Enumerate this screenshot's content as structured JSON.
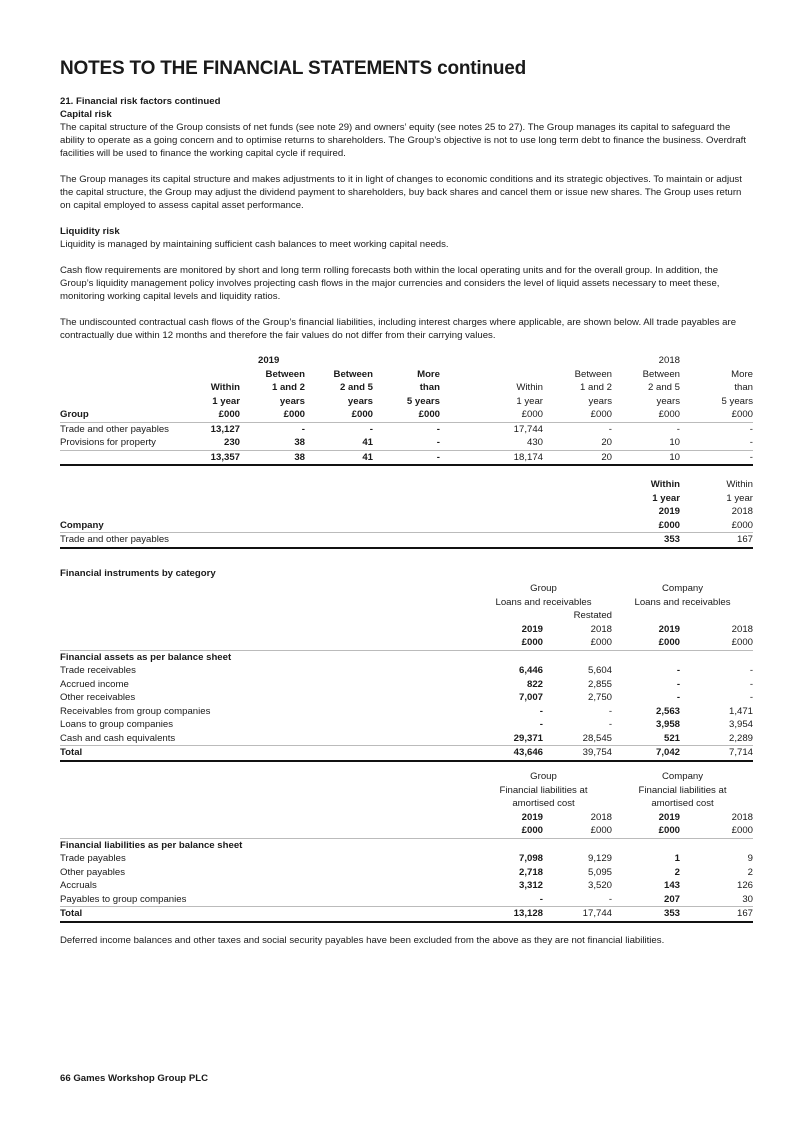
{
  "title": "NOTES TO THE FINANCIAL STATEMENTS continued",
  "section": "21.  Financial risk factors continued",
  "capital_risk": {
    "heading": "Capital risk",
    "p1": "The capital structure of the Group consists of net funds (see note 29) and owners’ equity (see notes 25 to 27). The Group manages its capital to safeguard the ability to operate as a going concern and to optimise returns to shareholders. The Group’s objective is not to use long term debt to finance the business. Overdraft facilities will be used to finance the working capital cycle if required.",
    "p2": "The Group manages its capital structure and makes adjustments to it in light of changes to economic conditions and its strategic objectives. To maintain or adjust the capital structure, the Group may adjust the dividend payment to shareholders, buy back shares and cancel them or issue new shares. The Group uses return on capital employed to assess capital asset performance."
  },
  "liquidity_risk": {
    "heading": "Liquidity risk",
    "p1": "Liquidity is managed by maintaining sufficient cash balances to meet working capital needs.",
    "p2": "Cash flow requirements are monitored by short and long term rolling forecasts both within the local operating units and for the overall group. In addition, the Group’s liquidity management policy involves projecting cash flows in the major currencies and considers the level of liquid assets necessary to meet these, monitoring working capital levels and liquidity ratios.",
    "p3": "The undiscounted contractual cash flows of the Group’s financial liabilities, including interest charges where applicable, are shown below. All trade payables are contractually due within 12 months and therefore the fair values do not differ from their carrying values."
  },
  "group_table": {
    "year_2019": "2019",
    "year_2018": "2018",
    "headers": [
      [
        "",
        "",
        "Between",
        "Between",
        "More",
        "",
        "Between",
        "Between",
        "More"
      ],
      [
        "",
        "Within",
        "1 and 2",
        "2 and 5",
        "than",
        "Within",
        "1 and 2",
        "2 and 5",
        "than"
      ],
      [
        "",
        "1 year",
        "years",
        "years",
        "5 years",
        "1 year",
        "years",
        "years",
        "5 years"
      ],
      [
        "Group",
        "£000",
        "£000",
        "£000",
        "£000",
        "£000",
        "£000",
        "£000",
        "£000"
      ]
    ],
    "rows": [
      [
        "Trade and other payables",
        "13,127",
        "-",
        "-",
        "-",
        "17,744",
        "-",
        "-",
        "-"
      ],
      [
        "Provisions for property",
        "230",
        "38",
        "41",
        "-",
        "430",
        "20",
        "10",
        "-"
      ]
    ],
    "total": [
      "",
      "13,357",
      "38",
      "41",
      "-",
      "18,174",
      "20",
      "10",
      "-"
    ]
  },
  "company_table": {
    "headers": [
      [
        "",
        "Within",
        "Within"
      ],
      [
        "",
        "1 year",
        "1 year"
      ],
      [
        "",
        "2019",
        "2018"
      ],
      [
        "Company",
        "£000",
        "£000"
      ]
    ],
    "row": [
      "Trade and other payables",
      "353",
      "167"
    ]
  },
  "fin_instruments": {
    "heading": "Financial instruments by category",
    "assets": {
      "group_label": "Group",
      "group_sub": "Loans and receivables",
      "company_label": "Company",
      "company_sub": "Loans and receivables",
      "restated": "Restated",
      "years": [
        "2019",
        "2018",
        "2019",
        "2018"
      ],
      "units": [
        "£000",
        "£000",
        "£000",
        "£000"
      ],
      "section_heading": "Financial assets as per balance sheet",
      "rows": [
        [
          "Trade receivables",
          "6,446",
          "5,604",
          "-",
          "-"
        ],
        [
          "Accrued income",
          "822",
          "2,855",
          "-",
          "-"
        ],
        [
          "Other receivables",
          "7,007",
          "2,750",
          "-",
          "-"
        ],
        [
          "Receivables from group companies",
          "-",
          "-",
          "2,563",
          "1,471"
        ],
        [
          "Loans to group companies",
          "-",
          "-",
          "3,958",
          "3,954"
        ],
        [
          "Cash and cash equivalents",
          "29,371",
          "28,545",
          "521",
          "2,289"
        ]
      ],
      "total": [
        "Total",
        "43,646",
        "39,754",
        "7,042",
        "7,714"
      ]
    },
    "liabilities": {
      "group_label": "Group",
      "group_sub1": "Financial liabilities at",
      "group_sub2": "amortised cost",
      "company_label": "Company",
      "company_sub1": "Financial liabilities at",
      "company_sub2": "amortised cost",
      "years": [
        "2019",
        "2018",
        "2019",
        "2018"
      ],
      "units": [
        "£000",
        "£000",
        "£000",
        "£000"
      ],
      "section_heading": "Financial liabilities as per balance sheet",
      "rows": [
        [
          "Trade payables",
          "7,098",
          "9,129",
          "1",
          "9"
        ],
        [
          "Other payables",
          "2,718",
          "5,095",
          "2",
          "2"
        ],
        [
          "Accruals",
          "3,312",
          "3,520",
          "143",
          "126"
        ],
        [
          "Payables to group companies",
          "-",
          "-",
          "207",
          "30"
        ]
      ],
      "total": [
        "Total",
        "13,128",
        "17,744",
        "353",
        "167"
      ]
    },
    "note": "Deferred income balances and other taxes and social security payables have been excluded from the above as they are not financial liabilities."
  },
  "footer": "66 Games Workshop Group PLC"
}
